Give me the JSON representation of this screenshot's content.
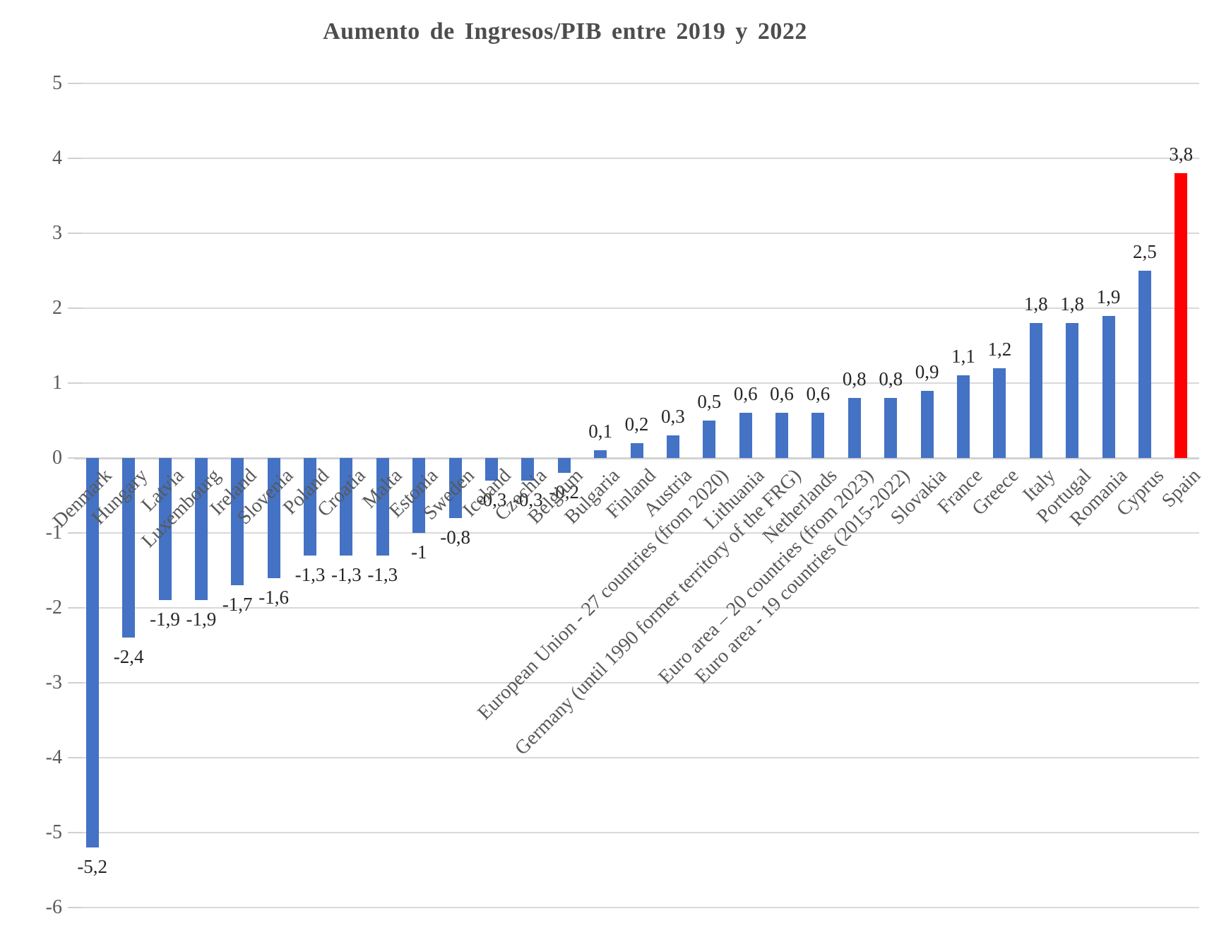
{
  "page": {
    "background": "#FFFFFF"
  },
  "chart_data": {
    "type": "bar",
    "title": "Aumento de Ingresos/PIB entre 2019 y 2022",
    "xlabel": "",
    "ylabel": "",
    "ylim": [
      -6,
      5
    ],
    "yticks": [
      5,
      4,
      3,
      2,
      1,
      0,
      -1,
      -2,
      -3,
      -4,
      -5,
      -6
    ],
    "grid": true,
    "legend": "none",
    "decimal_separator": ",",
    "categories": [
      "Denmark",
      "Hungary",
      "Latvia",
      "Luxembourg",
      "Ireland",
      "Slovenia",
      "Poland",
      "Croatia",
      "Malta",
      "Estonia",
      "Sweden",
      "Iceland",
      "Czechia",
      "Belgium",
      "Bulgaria",
      "Finland",
      "Austria",
      "European Union - 27 countries (from 2020)",
      "Lithuania",
      "Germany (until 1990 former territory of the FRG)",
      "Netherlands",
      "Euro area – 20 countries (from 2023)",
      "Euro area - 19 countries (2015-2022)",
      "Slovakia",
      "France",
      "Greece",
      "Italy",
      "Portugal",
      "Romania",
      "Cyprus",
      "Spain"
    ],
    "values": [
      -5.2,
      -2.4,
      -1.9,
      -1.9,
      -1.7,
      -1.6,
      -1.3,
      -1.3,
      -1.3,
      -1,
      -0.8,
      -0.3,
      -0.3,
      -0.2,
      0.1,
      0.2,
      0.3,
      0.5,
      0.6,
      0.6,
      0.6,
      0.8,
      0.8,
      0.9,
      1.1,
      1.2,
      1.8,
      1.8,
      1.9,
      2.5,
      3.8
    ],
    "value_labels": [
      "-5,2",
      "-2,4",
      "-1,9",
      "-1,9",
      "-1,7",
      "-1,6",
      "-1,3",
      "-1,3",
      "-1,3",
      "-1",
      "-0,8",
      "-0,3",
      "-0,3",
      "-0,2",
      "0,1",
      "0,2",
      "0,3",
      "0,5",
      "0,6",
      "0,6",
      "0,6",
      "0,8",
      "0,8",
      "0,9",
      "1,1",
      "1,2",
      "1,8",
      "1,8",
      "1,9",
      "2,5",
      "3,8"
    ],
    "bar_color": "#4472C4",
    "highlight_category": "Spain",
    "highlight_color": "#FF0000",
    "gridline_color": "#D9D9D9",
    "zero_line_color": "#D2D2D2",
    "tick_color": "#D0D0D0",
    "axis_text_color": "#595959",
    "category_text_color": "#595959",
    "value_label_color": "#262626",
    "title_color": "#4D4D4D"
  }
}
